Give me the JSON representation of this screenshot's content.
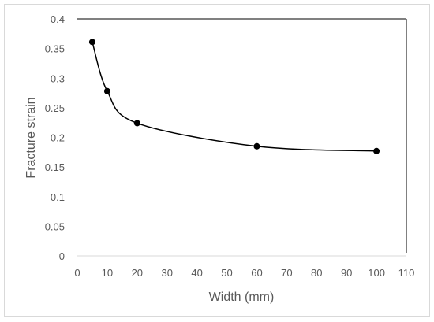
{
  "chart_data": {
    "type": "scatter",
    "title": "",
    "xlabel": "Width (mm)",
    "ylabel": "Fracture strain",
    "xlim": [
      0,
      110
    ],
    "ylim": [
      0,
      0.4
    ],
    "x_ticks": [
      "0",
      "10",
      "20",
      "30",
      "40",
      "50",
      "60",
      "70",
      "80",
      "90",
      "100",
      "110"
    ],
    "y_ticks": [
      "0",
      "0.05",
      "0.1",
      "0.15",
      "0.2",
      "0.25",
      "0.3",
      "0.35",
      "0.4"
    ],
    "grid": false,
    "legend": "none",
    "smooth_line": true,
    "series": [
      {
        "x": [
          5,
          10,
          20,
          60,
          100
        ],
        "y": [
          0.361,
          0.278,
          0.224,
          0.185,
          0.177
        ]
      }
    ],
    "colors": {
      "line": "#000000",
      "marker": "#000000",
      "axis": "#000000",
      "text": "#595959"
    }
  }
}
